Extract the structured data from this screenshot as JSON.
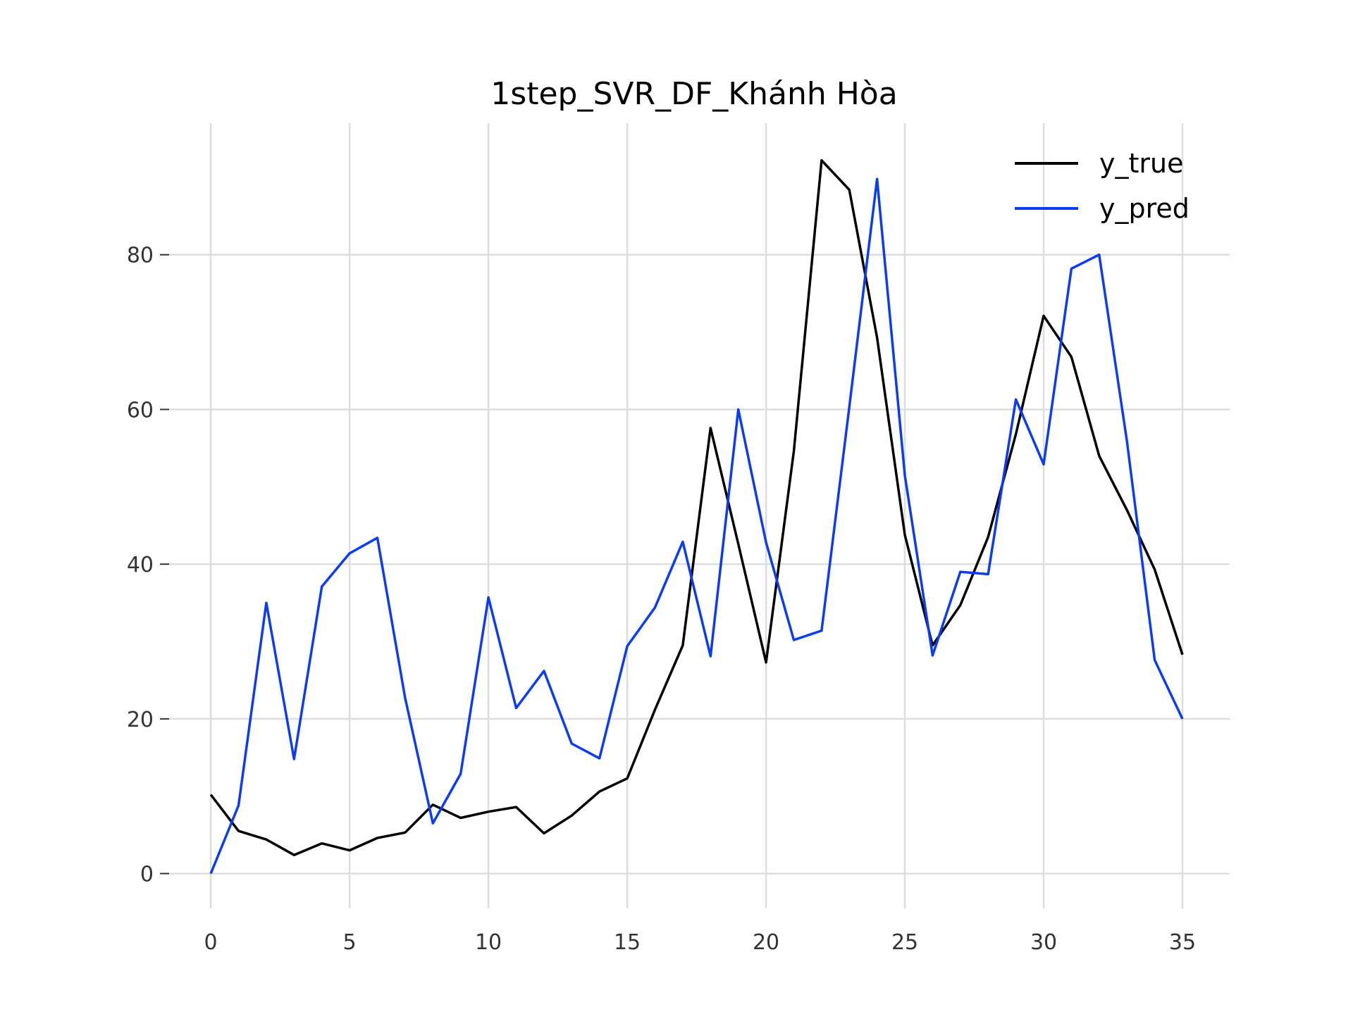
{
  "chart_data": {
    "type": "line",
    "title": "1step_SVR_DF_Khánh Hòa",
    "xlabel": "",
    "ylabel": "",
    "xlim": [
      -1.5,
      36.7
    ],
    "ylim": [
      -4.5,
      97
    ],
    "x_ticks": [
      0,
      5,
      10,
      15,
      20,
      25,
      30,
      35
    ],
    "y_ticks": [
      0,
      20,
      40,
      60,
      80
    ],
    "grid": true,
    "legend_position": "top-right",
    "x": [
      0,
      1,
      2,
      3,
      4,
      5,
      6,
      7,
      8,
      9,
      10,
      11,
      12,
      13,
      14,
      15,
      16,
      17,
      18,
      19,
      20,
      21,
      22,
      23,
      24,
      25,
      26,
      27,
      28,
      29,
      30,
      31,
      32,
      33,
      34,
      35
    ],
    "series": [
      {
        "name": "y_true",
        "color": "#000000",
        "values": [
          10.2,
          5.5,
          4.4,
          2.4,
          3.9,
          3.0,
          4.6,
          5.3,
          8.9,
          7.2,
          8.0,
          8.6,
          5.2,
          7.5,
          10.6,
          12.3,
          21.2,
          29.5,
          57.6,
          42.6,
          27.3,
          54.6,
          92.2,
          88.4,
          69.3,
          43.8,
          29.5,
          34.7,
          43.5,
          56.8,
          72.1,
          66.8,
          54.0,
          47.0,
          39.3,
          28.3
        ]
      },
      {
        "name": "y_pred",
        "color": "#0b3cf5",
        "values": [
          0.0,
          8.8,
          35.0,
          14.8,
          37.1,
          41.4,
          43.4,
          22.7,
          6.5,
          12.9,
          35.7,
          21.4,
          26.2,
          16.8,
          14.9,
          29.4,
          34.4,
          42.9,
          28.1,
          60.0,
          42.8,
          30.2,
          31.4,
          60.3,
          89.8,
          51.5,
          28.2,
          39.0,
          38.7,
          61.3,
          52.9,
          78.2,
          80.0,
          55.9,
          27.6,
          20.0
        ]
      }
    ]
  }
}
